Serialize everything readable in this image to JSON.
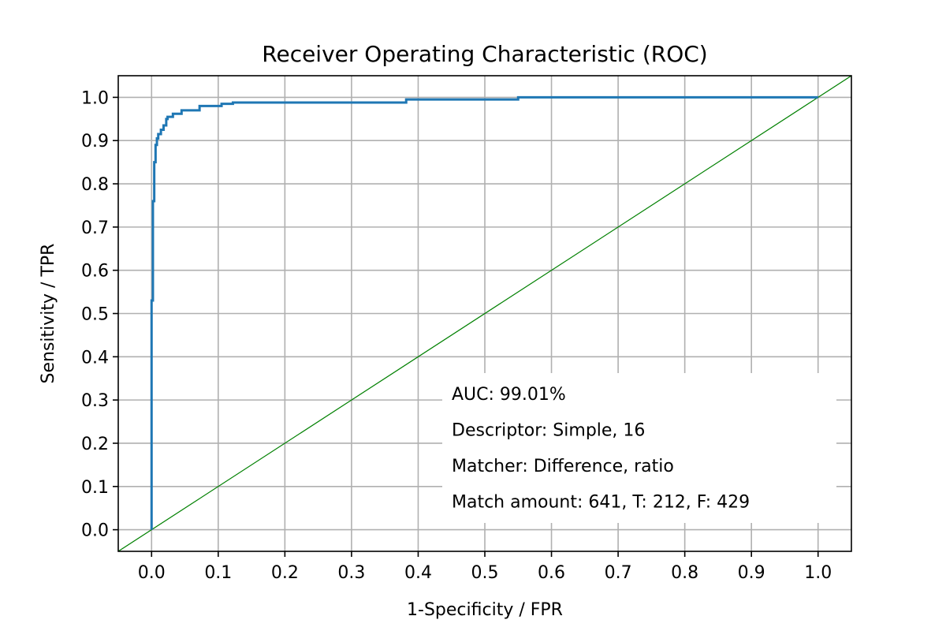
{
  "chart_data": {
    "type": "line",
    "title": "Receiver Operating Characteristic (ROC)",
    "xlabel": "1-Specificity / FPR",
    "ylabel": "Sensitivity / TPR",
    "xlim": [
      -0.05,
      1.05
    ],
    "ylim": [
      -0.05,
      1.05
    ],
    "xticks": [
      0.0,
      0.1,
      0.2,
      0.3,
      0.4,
      0.5,
      0.6,
      0.7,
      0.8,
      0.9,
      1.0
    ],
    "yticks": [
      0.0,
      0.1,
      0.2,
      0.3,
      0.4,
      0.5,
      0.6,
      0.7,
      0.8,
      0.9,
      1.0
    ],
    "xtick_labels": [
      "0.0",
      "0.1",
      "0.2",
      "0.3",
      "0.4",
      "0.5",
      "0.6",
      "0.7",
      "0.8",
      "0.9",
      "1.0"
    ],
    "ytick_labels": [
      "0.0",
      "0.1",
      "0.2",
      "0.3",
      "0.4",
      "0.5",
      "0.6",
      "0.7",
      "0.8",
      "0.9",
      "1.0"
    ],
    "grid": true,
    "series": [
      {
        "color": "#1f77b4",
        "step": true,
        "x": [
          0.0,
          0.0,
          0.002,
          0.002,
          0.004,
          0.004,
          0.006,
          0.006,
          0.008,
          0.008,
          0.01,
          0.01,
          0.014,
          0.014,
          0.018,
          0.018,
          0.022,
          0.022,
          0.024,
          0.024,
          0.032,
          0.032,
          0.045,
          0.045,
          0.072,
          0.072,
          0.105,
          0.105,
          0.122,
          0.122,
          0.142,
          0.142,
          0.382,
          0.382,
          0.55,
          0.55,
          1.0
        ],
        "y": [
          0.0,
          0.53,
          0.53,
          0.76,
          0.76,
          0.85,
          0.85,
          0.89,
          0.89,
          0.905,
          0.905,
          0.915,
          0.915,
          0.925,
          0.925,
          0.935,
          0.935,
          0.95,
          0.95,
          0.955,
          0.955,
          0.962,
          0.962,
          0.97,
          0.97,
          0.98,
          0.98,
          0.985,
          0.985,
          0.988,
          0.988,
          0.988,
          0.988,
          0.995,
          0.995,
          1.0,
          1.0
        ]
      },
      {
        "color": "#008000",
        "step": false,
        "x": [
          -0.05,
          1.05
        ],
        "y": [
          -0.05,
          1.05
        ]
      }
    ],
    "annotations": [
      "AUC: 99.01%",
      "Descriptor: Simple, 16",
      "Matcher: Difference, ratio",
      "Match amount: 641, T: 212, F: 429"
    ]
  }
}
